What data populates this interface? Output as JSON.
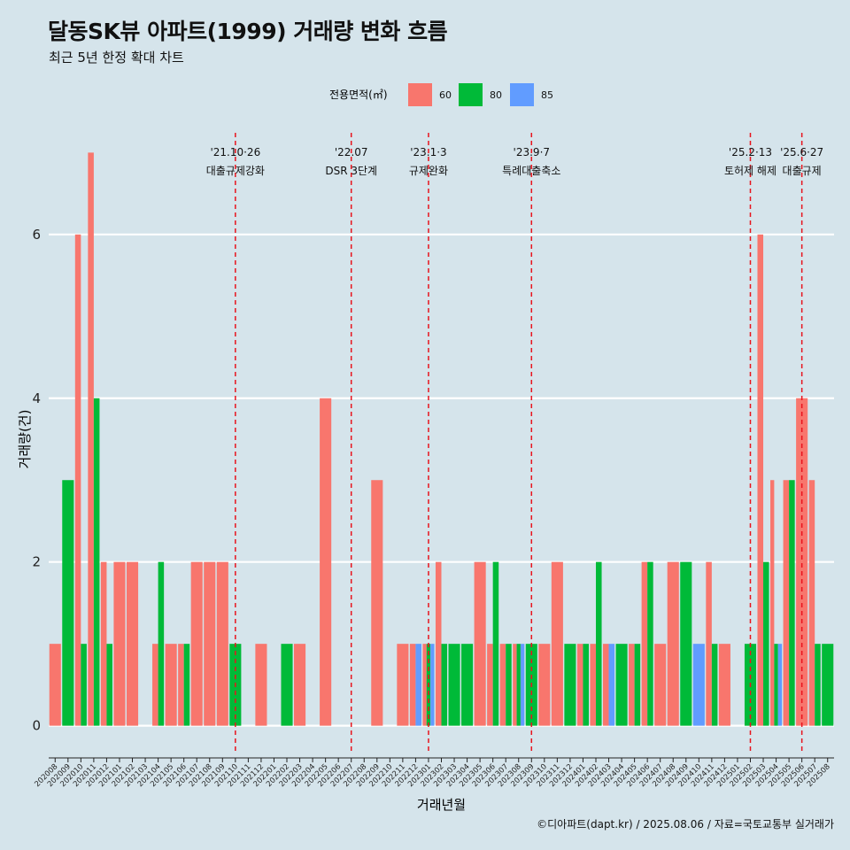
{
  "title": "달동SK뷰 아파트(1999) 거래량 변화 흐름",
  "subtitle": "최근 5년 한정 확대 차트",
  "caption": "©디아파트(dapt.kr) / 2025.08.06 / 자료=국토교통부 실거래가",
  "chart_data": {
    "type": "bar",
    "title": "달동SK뷰 아파트(1999) 거래량 변화 흐름",
    "subtitle": "최근 5년 한정 확대 차트",
    "xlabel": "거래년월",
    "ylabel": "거래량(건)",
    "ylim": [
      -0.35,
      7.35
    ],
    "yticks": [
      0,
      2,
      4,
      6
    ],
    "grid": true,
    "legend": {
      "title": "전용면적(㎡)",
      "position": "top"
    },
    "categories": [
      "202008",
      "202009",
      "202010",
      "202011",
      "202012",
      "202101",
      "202102",
      "202103",
      "202104",
      "202105",
      "202106",
      "202107",
      "202108",
      "202109",
      "202110",
      "202111",
      "202112",
      "202201",
      "202202",
      "202203",
      "202204",
      "202205",
      "202206",
      "202207",
      "202208",
      "202209",
      "202210",
      "202211",
      "202212",
      "202301",
      "202302",
      "202303",
      "202304",
      "202305",
      "202306",
      "202307",
      "202308",
      "202309",
      "202310",
      "202311",
      "202312",
      "202401",
      "202402",
      "202403",
      "202404",
      "202405",
      "202406",
      "202407",
      "202408",
      "202409",
      "202410",
      "202411",
      "202412",
      "202501",
      "202502",
      "202503",
      "202504",
      "202505",
      "202506",
      "202507",
      "202508"
    ],
    "series": [
      {
        "name": "60",
        "color": "#f8766d",
        "values": [
          1,
          0,
          6,
          7,
          2,
          2,
          2,
          0,
          1,
          1,
          1,
          2,
          2,
          2,
          0,
          0,
          1,
          0,
          0,
          1,
          0,
          4,
          0,
          0,
          0,
          3,
          0,
          1,
          1,
          1,
          2,
          0,
          0,
          2,
          1,
          1,
          1,
          0,
          1,
          2,
          0,
          1,
          1,
          1,
          0,
          1,
          2,
          1,
          2,
          0,
          0,
          2,
          1,
          0,
          0,
          6,
          3,
          3,
          4,
          3,
          0
        ]
      },
      {
        "name": "80",
        "color": "#00ba38",
        "values": [
          0,
          3,
          1,
          4,
          1,
          0,
          0,
          0,
          2,
          0,
          1,
          0,
          0,
          0,
          1,
          0,
          0,
          0,
          1,
          0,
          0,
          0,
          0,
          0,
          0,
          0,
          0,
          0,
          0,
          1,
          1,
          1,
          1,
          0,
          2,
          1,
          1,
          1,
          0,
          0,
          1,
          1,
          2,
          0,
          1,
          1,
          2,
          0,
          0,
          2,
          0,
          1,
          0,
          0,
          1,
          2,
          1,
          3,
          0,
          1,
          1
        ]
      },
      {
        "name": "85",
        "color": "#619cff",
        "values": [
          0,
          0,
          0,
          0,
          0,
          0,
          0,
          0,
          0,
          0,
          0,
          0,
          0,
          0,
          0,
          0,
          0,
          0,
          0,
          0,
          0,
          0,
          0,
          0,
          0,
          0,
          0,
          0,
          1,
          1,
          0,
          0,
          0,
          0,
          0,
          0,
          1,
          0,
          0,
          0,
          0,
          0,
          0,
          1,
          0,
          0,
          0,
          0,
          0,
          0,
          1,
          0,
          0,
          0,
          0,
          0,
          1,
          0,
          0,
          0,
          0
        ]
      }
    ],
    "annotations": [
      {
        "date": "'21.10·26",
        "text": "대출규제강화",
        "x": "202110"
      },
      {
        "date": "'22.07",
        "text": "DSR 3단계",
        "x": "202207"
      },
      {
        "date": "'23.1·3",
        "text": "규제완화",
        "x": "202301"
      },
      {
        "date": "'23.9·7",
        "text": "특례대출축소",
        "x": "202309"
      },
      {
        "date": "'25.2·13",
        "text": "토허제 해제",
        "x": "202502"
      },
      {
        "date": "'25.6·27",
        "text": "대출규제",
        "x": "202506"
      }
    ]
  }
}
